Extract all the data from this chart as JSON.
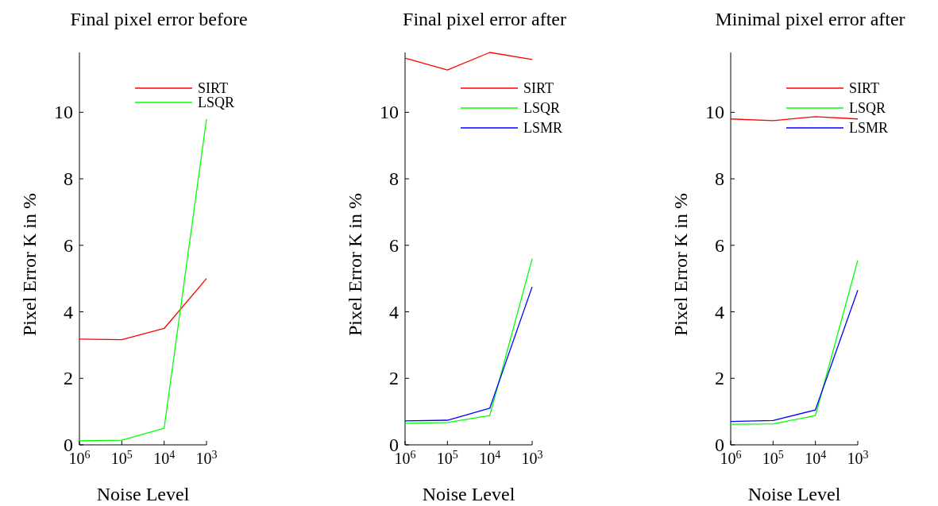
{
  "chart_data": [
    {
      "type": "line",
      "title": "Final pixel error before",
      "xlabel": "Noise Level",
      "ylabel": "Pixel Error K in %",
      "categories": [
        "10$^{6}$",
        "10$^{5}$",
        "10$^{4}$",
        "10$^{3}$"
      ],
      "series": [
        {
          "name": "SIRT",
          "color": "#ff0000",
          "values": [
            3.18,
            3.16,
            3.5,
            5.0
          ]
        },
        {
          "name": "LSQR",
          "color": "#00ff00",
          "values": [
            0.12,
            0.14,
            0.5,
            9.8
          ]
        }
      ],
      "ylim": [
        0,
        11.8
      ],
      "yticks": [
        0,
        2,
        4,
        6,
        8,
        10
      ],
      "legend": "top right",
      "grid": false,
      "marker": "none"
    },
    {
      "type": "line",
      "title": "Final pixel error after",
      "xlabel": "Noise Level",
      "ylabel": "Pixel Error K in %",
      "categories": [
        "10$^{6}$",
        "10$^{5}$",
        "10$^{4}$",
        "10$^{3}$"
      ],
      "series": [
        {
          "name": "SIRT",
          "color": "#ff0000",
          "values": [
            11.63,
            11.27,
            11.8,
            11.59
          ]
        },
        {
          "name": "LSQR",
          "color": "#00ff00",
          "values": [
            0.65,
            0.67,
            0.88,
            5.6
          ]
        },
        {
          "name": "LSMR",
          "color": "#0000ff",
          "values": [
            0.72,
            0.74,
            1.1,
            4.75
          ]
        }
      ],
      "ylim": [
        0,
        11.8
      ],
      "yticks": [
        0,
        2,
        4,
        6,
        8,
        10
      ],
      "legend": "top right",
      "grid": false,
      "marker": "none"
    },
    {
      "type": "line",
      "title": "Minimal pixel error after",
      "xlabel": "Noise Level",
      "ylabel": "Pixel Error K in %",
      "categories": [
        "10$^{6}$",
        "10$^{5}$",
        "10$^{4}$",
        "10$^{3}$"
      ],
      "series": [
        {
          "name": "SIRT",
          "color": "#ff0000",
          "values": [
            9.8,
            9.75,
            9.87,
            9.8
          ]
        },
        {
          "name": "LSQR",
          "color": "#00ff00",
          "values": [
            0.62,
            0.63,
            0.88,
            5.55
          ]
        },
        {
          "name": "LSMR",
          "color": "#0000ff",
          "values": [
            0.7,
            0.73,
            1.05,
            4.65
          ]
        }
      ],
      "ylim": [
        0,
        11.8
      ],
      "yticks": [
        0,
        2,
        4,
        6,
        8,
        10
      ],
      "legend": "top right",
      "grid": false,
      "marker": "none"
    }
  ]
}
